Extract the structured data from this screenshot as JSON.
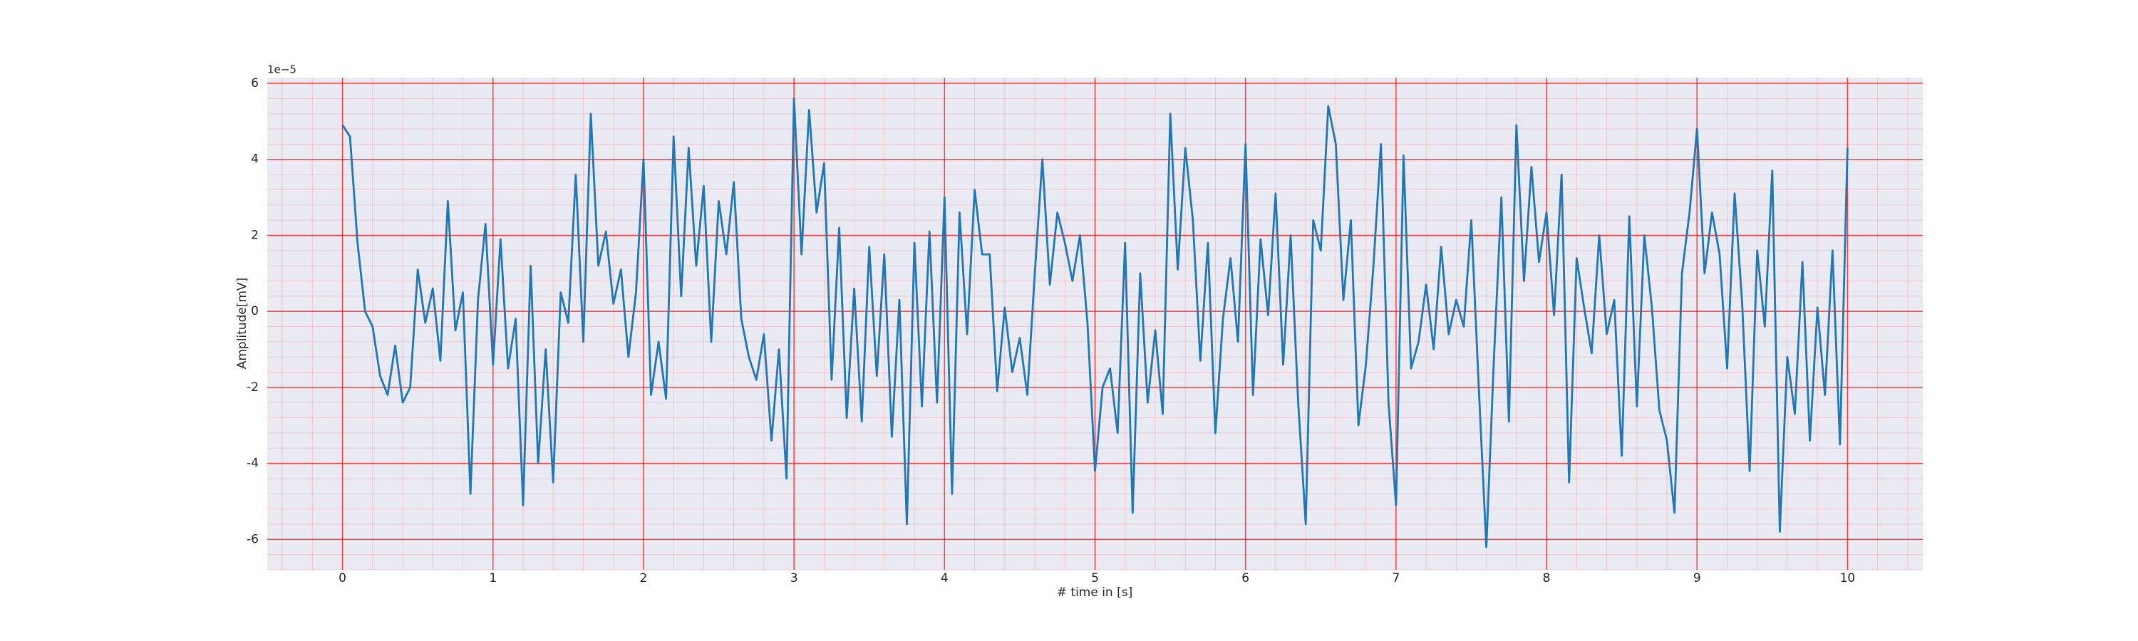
{
  "chart_data": {
    "type": "line",
    "xlabel": "# time in [s]",
    "ylabel": "Amplitude[mV]",
    "y_offset_label": "1e−5",
    "x": [
      0,
      0.05,
      0.1,
      0.15,
      0.2,
      0.25,
      0.3,
      0.35,
      0.4,
      0.45,
      0.5,
      0.55,
      0.6,
      0.65,
      0.7,
      0.75,
      0.8,
      0.85,
      0.9,
      0.95,
      1,
      1.05,
      1.1,
      1.15,
      1.2,
      1.25,
      1.3,
      1.35,
      1.4,
      1.45,
      1.5,
      1.55,
      1.6,
      1.65,
      1.7,
      1.75,
      1.8,
      1.85,
      1.9,
      1.95,
      2,
      2.05,
      2.1,
      2.15,
      2.2,
      2.25,
      2.3,
      2.35,
      2.4,
      2.45,
      2.5,
      2.55,
      2.6,
      2.65,
      2.7,
      2.75,
      2.8,
      2.85,
      2.9,
      2.95,
      3,
      3.05,
      3.1,
      3.15,
      3.2,
      3.25,
      3.3,
      3.35,
      3.4,
      3.45,
      3.5,
      3.55,
      3.6,
      3.65,
      3.7,
      3.75,
      3.8,
      3.85,
      3.9,
      3.95,
      4,
      4.05,
      4.1,
      4.15,
      4.2,
      4.25,
      4.3,
      4.35,
      4.4,
      4.45,
      4.5,
      4.55,
      4.6,
      4.65,
      4.7,
      4.75,
      4.8,
      4.85,
      4.9,
      4.95,
      5,
      5.05,
      5.1,
      5.15,
      5.2,
      5.25,
      5.3,
      5.35,
      5.4,
      5.45,
      5.5,
      5.55,
      5.6,
      5.65,
      5.7,
      5.75,
      5.8,
      5.85,
      5.9,
      5.95,
      6,
      6.05,
      6.1,
      6.15,
      6.2,
      6.25,
      6.3,
      6.35,
      6.4,
      6.45,
      6.5,
      6.55,
      6.6,
      6.65,
      6.7,
      6.75,
      6.8,
      6.85,
      6.9,
      6.95,
      7,
      7.05,
      7.1,
      7.15,
      7.2,
      7.25,
      7.3,
      7.35,
      7.4,
      7.45,
      7.5,
      7.55,
      7.6,
      7.65,
      7.7,
      7.75,
      7.8,
      7.85,
      7.9,
      7.95,
      8,
      8.05,
      8.1,
      8.15,
      8.2,
      8.25,
      8.3,
      8.35,
      8.4,
      8.45,
      8.5,
      8.55,
      8.6,
      8.65,
      8.7,
      8.75,
      8.8,
      8.85,
      8.9,
      8.95,
      9,
      9.05,
      9.1,
      9.15,
      9.2,
      9.25,
      9.3,
      9.35,
      9.4,
      9.45,
      9.5,
      9.55,
      9.6,
      9.65,
      9.7,
      9.75,
      9.8,
      9.85,
      9.9,
      9.95,
      10
    ],
    "series": [
      {
        "color": "#1f77b4",
        "values": [
          4.9,
          4.6,
          1.8,
          0.0,
          -0.4,
          -1.7,
          -2.2,
          -0.9,
          -2.4,
          -2.0,
          1.1,
          -0.3,
          0.6,
          -1.3,
          2.9,
          -0.5,
          0.5,
          -4.8,
          0.3,
          2.3,
          -1.4,
          1.9,
          -1.5,
          -0.2,
          -5.1,
          1.2,
          -4.0,
          -1.0,
          -4.5,
          0.5,
          -0.3,
          3.6,
          -0.8,
          5.2,
          1.2,
          2.1,
          0.2,
          1.1,
          -1.2,
          0.5,
          4.0,
          -2.2,
          -0.8,
          -2.3,
          4.6,
          0.4,
          4.3,
          1.2,
          3.3,
          -0.8,
          2.9,
          1.5,
          3.4,
          -0.2,
          -1.2,
          -1.8,
          -0.6,
          -3.4,
          -1.0,
          -4.4,
          5.6,
          1.5,
          5.3,
          2.6,
          3.9,
          -1.8,
          2.2,
          -2.8,
          0.6,
          -2.9,
          1.7,
          -1.7,
          1.5,
          -3.3,
          0.3,
          -5.6,
          1.8,
          -2.5,
          2.1,
          -2.4,
          3.0,
          -4.8,
          2.6,
          -0.6,
          3.2,
          1.5,
          1.5,
          -2.1,
          0.1,
          -1.6,
          -0.7,
          -2.2,
          1.0,
          4.0,
          0.7,
          2.6,
          1.8,
          0.8,
          2.0,
          -0.3,
          -4.2,
          -2.0,
          -1.5,
          -3.2,
          1.8,
          -5.3,
          1.0,
          -2.4,
          -0.5,
          -2.7,
          5.2,
          1.1,
          4.3,
          2.4,
          -1.3,
          1.8,
          -3.2,
          -0.2,
          1.4,
          -0.8,
          4.4,
          -2.2,
          1.9,
          -0.1,
          3.1,
          -1.4,
          2.0,
          -2.4,
          -5.6,
          2.4,
          1.6,
          5.4,
          4.4,
          0.3,
          2.4,
          -3.0,
          -1.4,
          1.2,
          4.4,
          -2.4,
          -5.1,
          4.1,
          -1.5,
          -0.8,
          0.7,
          -1.0,
          1.7,
          -0.6,
          0.3,
          -0.4,
          2.4,
          -2.0,
          -6.2,
          -1.3,
          3.0,
          -2.9,
          4.9,
          0.8,
          3.8,
          1.3,
          2.6,
          -0.1,
          3.6,
          -4.5,
          1.4,
          0.1,
          -1.1,
          2.0,
          -0.6,
          0.3,
          -3.8,
          2.5,
          -2.5,
          2.0,
          0.1,
          -2.6,
          -3.4,
          -5.3,
          1.0,
          2.6,
          4.8,
          1.0,
          2.6,
          1.5,
          -1.5,
          3.1,
          0.2,
          -4.2,
          1.6,
          -0.4,
          3.7,
          -5.8,
          -1.2,
          -2.7,
          1.3,
          -3.4,
          0.1,
          -2.2,
          1.6,
          -3.5,
          4.3
        ]
      }
    ],
    "xlim": [
      -0.5,
      10.5
    ],
    "ylim": [
      -6.8,
      6.15
    ],
    "xticks": [
      0,
      1,
      2,
      3,
      4,
      5,
      6,
      7,
      8,
      9,
      10
    ],
    "yticks": [
      -6,
      -4,
      -2,
      0,
      2,
      4,
      6
    ],
    "grid": true,
    "grid_color": "#ff0000",
    "minor_grid": true,
    "background": "#eaeaf2"
  }
}
